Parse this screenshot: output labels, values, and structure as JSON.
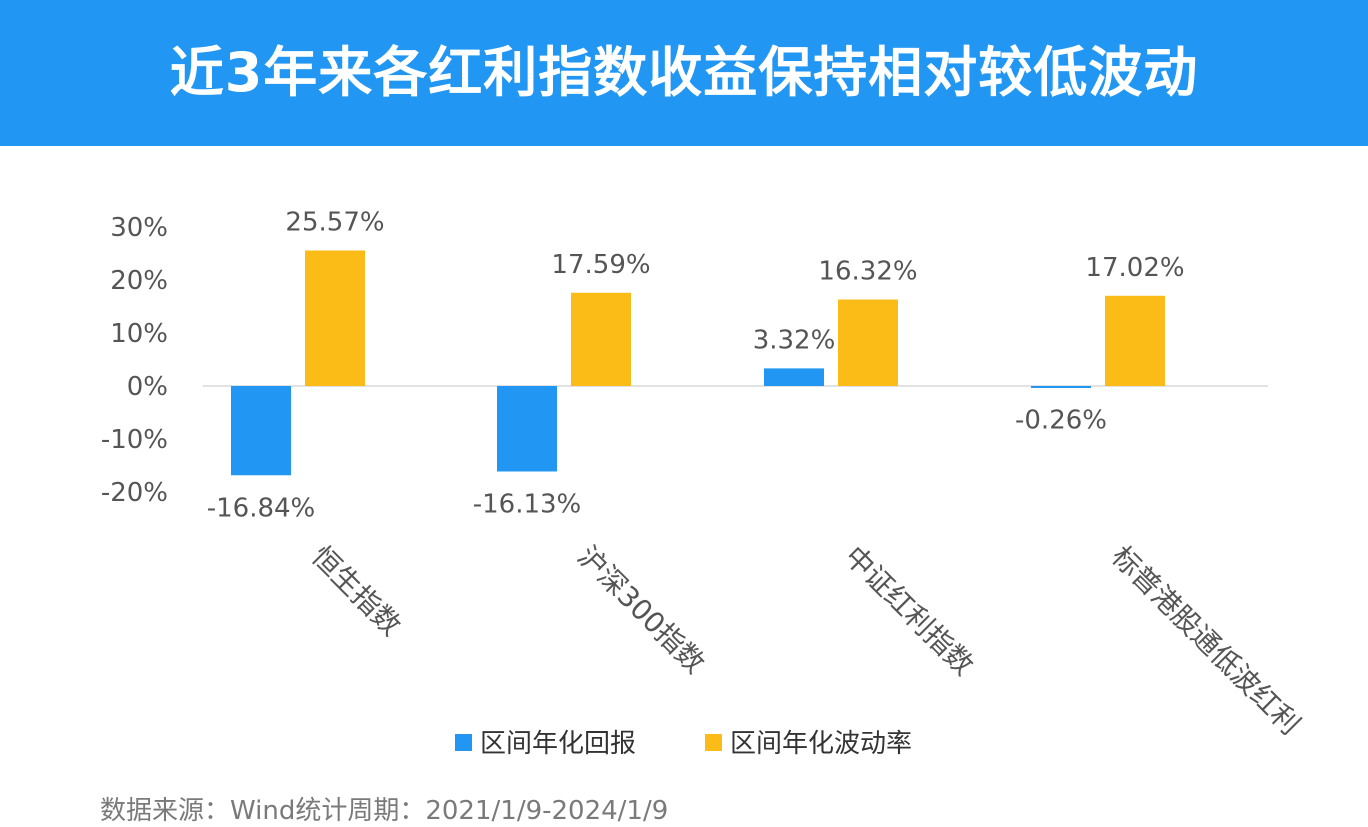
{
  "header": {
    "title": "近3年来各红利指数收益保持相对较低波动"
  },
  "footer": {
    "source": "数据来源：Wind统计周期：2021/1/9-2024/1/9"
  },
  "colors": {
    "header_bg": "#2196f3",
    "return": "#2196f3",
    "volatility": "#fbbc18",
    "axis_text": "#555555",
    "footer_text": "#7a7a7a"
  },
  "chart_data": {
    "type": "bar",
    "categories": [
      "恒生指数",
      "沪深300指数",
      "中证红利指数",
      "标普港股通低波红利"
    ],
    "series": [
      {
        "name": "区间年化回报",
        "values": [
          -16.84,
          -16.13,
          3.32,
          -0.26
        ],
        "labels": [
          "-16.84%",
          "-16.13%",
          "3.32%",
          "-0.26%"
        ],
        "color": "#2196f3"
      },
      {
        "name": "区间年化波动率",
        "values": [
          25.57,
          17.59,
          16.32,
          17.02
        ],
        "labels": [
          "25.57%",
          "17.59%",
          "16.32%",
          "17.02%"
        ],
        "color": "#fbbc18"
      }
    ],
    "ylim": [
      -20,
      30
    ],
    "yticks": [
      30,
      20,
      10,
      0,
      -10,
      -20
    ],
    "ytick_labels": [
      "30%",
      "20%",
      "10%",
      "0%",
      "-10%",
      "-20%"
    ],
    "legend_position": "bottom",
    "grid": false
  }
}
